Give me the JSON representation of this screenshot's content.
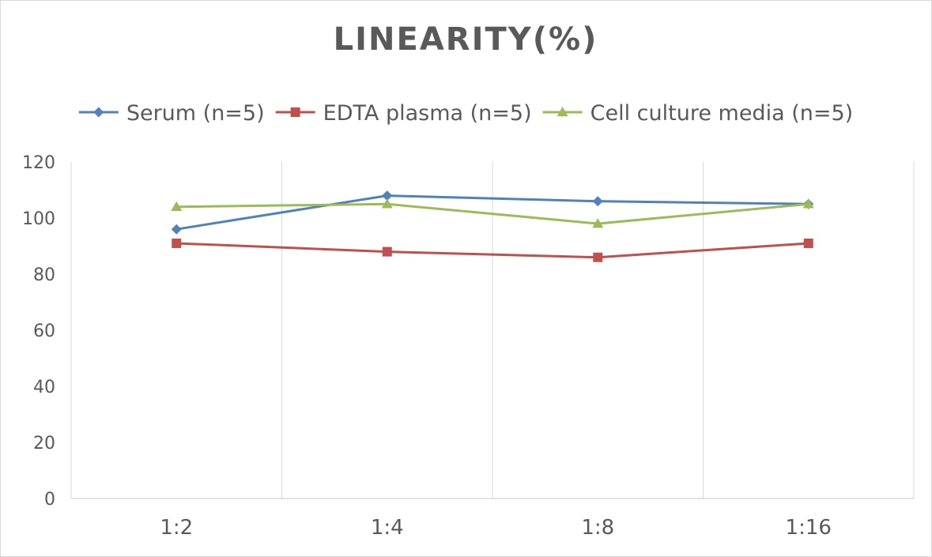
{
  "chart_data": {
    "type": "line",
    "title": "LINEARITY(%)",
    "categories": [
      "1:2",
      "1:4",
      "1:8",
      "1:16"
    ],
    "ylim": [
      0,
      120
    ],
    "yticks": [
      0,
      20,
      40,
      60,
      80,
      100,
      120
    ],
    "grid": "vertical",
    "legend": "top",
    "series": [
      {
        "name": "Serum (n=5)",
        "values": [
          96,
          108,
          106,
          105
        ],
        "color": "#4f81bd",
        "marker": "diamond"
      },
      {
        "name": "EDTA plasma (n=5)",
        "values": [
          91,
          88,
          86,
          91
        ],
        "color": "#c0504d",
        "marker": "square"
      },
      {
        "name": "Cell culture media (n=5)",
        "values": [
          104,
          105,
          98,
          105
        ],
        "color": "#9bbb59",
        "marker": "triangle"
      }
    ]
  }
}
